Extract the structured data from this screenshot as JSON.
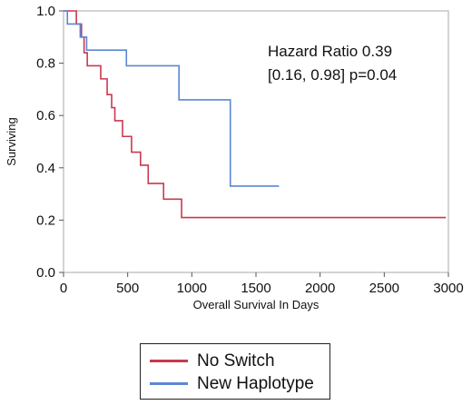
{
  "chart_data": {
    "type": "line",
    "step": true,
    "xlabel": "Overall Survival In Days",
    "ylabel": "Surviving",
    "xlim": [
      0,
      3000
    ],
    "ylim": [
      0,
      1
    ],
    "xticks": [
      "0",
      "500",
      "1000",
      "1500",
      "2000",
      "2500",
      "3000"
    ],
    "yticks": [
      "0.0",
      "0.2",
      "0.4",
      "0.6",
      "0.8",
      "1.0"
    ],
    "grid": false,
    "legend_position": "bottom",
    "annotation": {
      "line1": "Hazard Ratio 0.39",
      "line2": "[0.16, 0.98] p=0.04"
    },
    "series": [
      {
        "name": "No Switch",
        "color": "#c9394f",
        "x": [
          0,
          100,
          140,
          160,
          185,
          290,
          340,
          375,
          400,
          460,
          530,
          600,
          660,
          780,
          920,
          2980
        ],
        "y": [
          1.0,
          0.95,
          0.9,
          0.84,
          0.79,
          0.74,
          0.68,
          0.63,
          0.58,
          0.52,
          0.46,
          0.41,
          0.34,
          0.28,
          0.21,
          0.21
        ]
      },
      {
        "name": "New Haplotype",
        "color": "#5b86d4",
        "x": [
          0,
          30,
          130,
          180,
          490,
          900,
          1300,
          1680
        ],
        "y": [
          1.0,
          0.95,
          0.9,
          0.85,
          0.79,
          0.66,
          0.33,
          0.33
        ]
      }
    ]
  },
  "legend": {
    "items": [
      {
        "label": "No Switch",
        "color": "#c9394f"
      },
      {
        "label": "New Haplotype",
        "color": "#5b86d4"
      }
    ]
  }
}
